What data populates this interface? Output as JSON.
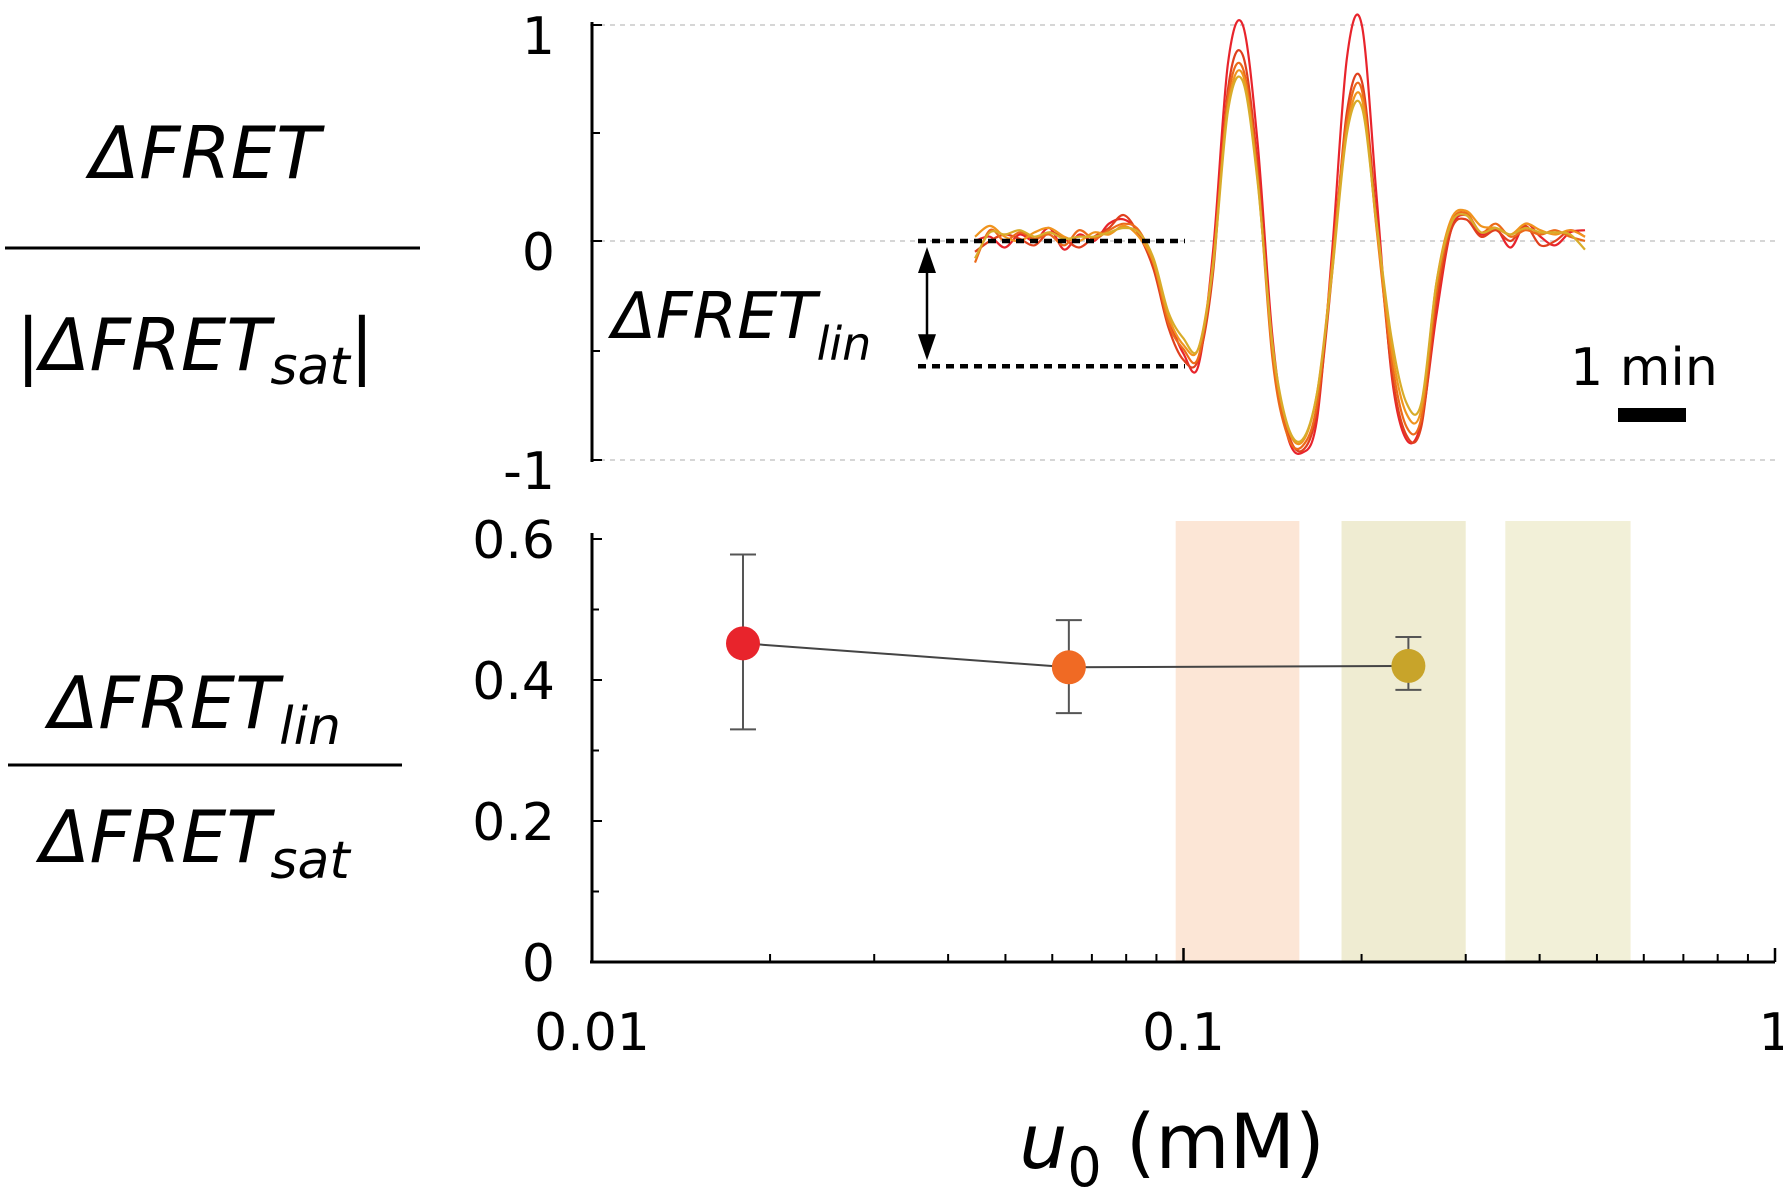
{
  "chart_data": [
    {
      "type": "line",
      "ylabel": {
        "numerator": "ΔFRET",
        "denominator": "|ΔFRET",
        "denominator_sub": "sat"
      },
      "ylim": [
        -1,
        1
      ],
      "yticks": [
        "1",
        "0",
        "-1"
      ],
      "grid_y": true,
      "annotation": {
        "main": "ΔFRET",
        "sub": "lin",
        "from_y": 0,
        "to_y": -0.58
      },
      "scalebar_label": "1 min",
      "baseline_window": [
        0,
        3.7
      ],
      "traces": [
        {
          "color": "#e8242c",
          "values": [
            0,
            0.02,
            -0.03,
            0.03,
            0,
            0.06,
            -0.04,
            0.03,
            0,
            0.08,
            0.1,
            0.04,
            -0.1,
            -0.35,
            -0.52,
            -0.58,
            -0.05,
            0.82,
            1.0,
            0.45,
            -0.45,
            -0.9,
            -0.98,
            -0.82,
            -0.05,
            0.85,
            1.0,
            0.2,
            -0.62,
            -0.92,
            -0.84,
            -0.35,
            0.05,
            0.12,
            0.03,
            0.06,
            -0.03,
            0.08,
            0.02,
            -0.02,
            0.04,
            0.05
          ]
        },
        {
          "color": "#e0401e",
          "values": [
            -0.05,
            0,
            0.03,
            0.01,
            -0.02,
            0.04,
            0.01,
            -0.03,
            0.02,
            0.06,
            0.12,
            0.03,
            -0.13,
            -0.4,
            -0.55,
            -0.55,
            -0.15,
            0.7,
            0.86,
            0.35,
            -0.5,
            -0.88,
            -0.97,
            -0.78,
            -0.15,
            0.6,
            0.74,
            0.1,
            -0.6,
            -0.9,
            -0.86,
            -0.3,
            0.05,
            0.1,
            0.02,
            0.05,
            0,
            0.07,
            -0.02,
            0,
            0.05,
            0.02
          ]
        },
        {
          "color": "#ec6a1a",
          "values": [
            -0.1,
            0.05,
            0,
            0.04,
            0.01,
            0.03,
            -0.02,
            0.05,
            0.01,
            0.05,
            0.08,
            0.05,
            -0.1,
            -0.38,
            -0.5,
            -0.54,
            -0.1,
            0.66,
            0.8,
            0.3,
            -0.55,
            -0.9,
            -0.95,
            -0.75,
            -0.1,
            0.56,
            0.7,
            0.05,
            -0.55,
            -0.86,
            -0.82,
            -0.25,
            0.08,
            0.13,
            0.04,
            0.08,
            0.02,
            0.05,
            0.03,
            0.05,
            0.02,
            0
          ]
        },
        {
          "color": "#f0941e",
          "values": [
            0.02,
            0.07,
            0.02,
            0,
            0.04,
            0.06,
            0.02,
            0,
            0.04,
            0.03,
            0.07,
            0.02,
            -0.1,
            -0.35,
            -0.48,
            -0.5,
            -0.1,
            0.62,
            0.77,
            0.28,
            -0.5,
            -0.86,
            -0.93,
            -0.7,
            -0.12,
            0.52,
            0.66,
            0.06,
            -0.5,
            -0.8,
            -0.78,
            -0.2,
            0.1,
            0.14,
            0.07,
            0.06,
            0.03,
            0.08,
            0.05,
            0.03,
            0.05,
            0.02
          ]
        },
        {
          "color": "#d8ac2a",
          "values": [
            -0.08,
            0.04,
            0.03,
            0.05,
            0.02,
            0.04,
            0.01,
            0.02,
            0.02,
            0.04,
            0.06,
            0.04,
            -0.08,
            -0.33,
            -0.45,
            -0.5,
            -0.12,
            0.6,
            0.74,
            0.27,
            -0.48,
            -0.85,
            -0.92,
            -0.7,
            -0.15,
            0.5,
            0.62,
            0.08,
            -0.45,
            -0.75,
            -0.75,
            -0.2,
            0.08,
            0.12,
            0.04,
            0.06,
            0.03,
            0.06,
            0.04,
            0.04,
            0.03,
            -0.04
          ]
        }
      ]
    },
    {
      "type": "scatter",
      "ylabel": {
        "numerator": "ΔFRET",
        "numerator_sub": "lin",
        "denominator": "ΔFRET",
        "denominator_sub": "sat"
      },
      "xlabel": {
        "var": "u",
        "sub": "0",
        "unit": " (mM)"
      },
      "xscale": "log",
      "xlim": [
        0.01,
        1
      ],
      "ylim": [
        0,
        0.6
      ],
      "xticks": [
        {
          "v": 0.01,
          "label": "0.01"
        },
        {
          "v": 0.1,
          "label": "0.1"
        },
        {
          "v": 1,
          "label": "1"
        }
      ],
      "yticks": [
        {
          "v": 0,
          "label": "0"
        },
        {
          "v": 0.2,
          "label": "0.2"
        },
        {
          "v": 0.4,
          "label": "0.4"
        },
        {
          "v": 0.6,
          "label": "0.6"
        }
      ],
      "bands": [
        {
          "x0": 0.097,
          "x1": 0.157,
          "color": "#fce6d6"
        },
        {
          "x0": 0.185,
          "x1": 0.3,
          "color": "#efecd2"
        },
        {
          "x0": 0.35,
          "x1": 0.57,
          "color": "#f2f0d8"
        }
      ],
      "points": [
        {
          "x": 0.018,
          "y": 0.452,
          "err_low": 0.33,
          "err_high": 0.578,
          "color": "#e8242c"
        },
        {
          "x": 0.064,
          "y": 0.418,
          "err_low": 0.353,
          "err_high": 0.485,
          "color": "#f06a24"
        },
        {
          "x": 0.24,
          "y": 0.42,
          "err_low": 0.386,
          "err_high": 0.461,
          "color": "#c8a42a"
        }
      ],
      "line_color": "#444444"
    }
  ]
}
